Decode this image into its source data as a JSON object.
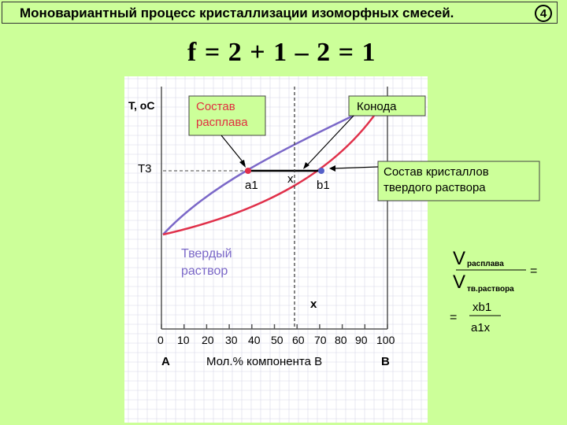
{
  "header": {
    "title": "Моновариантный процесс кристаллизации изоморфных смесей.",
    "slide_number": "4"
  },
  "formula": "f = 2 + 1 – 2 = 1",
  "diagram": {
    "y_axis_label": "T, oC",
    "t3_label": "T3",
    "callouts": {
      "melt_composition": [
        "Состав",
        "расплава"
      ],
      "konoda": "Конода",
      "crystal_composition": [
        "Состав кристаллов",
        "твердого раствора"
      ]
    },
    "point_a1": "a1",
    "point_b1": "b1",
    "point_x": "x",
    "x_bottom": "x",
    "region_solid": [
      "Твердый",
      "раствор"
    ],
    "x_ticks": [
      "0",
      "10",
      "20",
      "30",
      "40",
      "50",
      "60",
      "70",
      "80",
      "90",
      "100"
    ],
    "label_A": "A",
    "label_B": "B",
    "x_axis_label": "Мол.% компонента В",
    "colors": {
      "liquidus": "#7b68c8",
      "solidus": "#e0304a",
      "callout_bg": "#ccff99",
      "background": "#ccff99"
    }
  },
  "ratio": {
    "V_top": "V",
    "V_top_sub": "расплава",
    "V_bottom": "V",
    "V_bottom_sub": "тв.раствора",
    "equals": "=",
    "numerator": "xb1",
    "denominator": "a1x",
    "equals2": "="
  }
}
